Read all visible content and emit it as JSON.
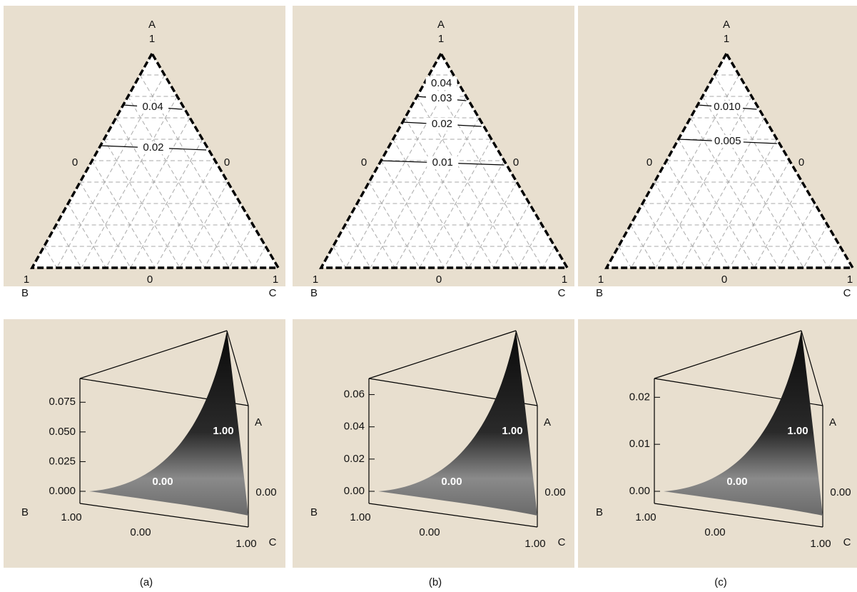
{
  "chart_data": [
    {
      "type": "ternary",
      "vertex_labels": [
        "A",
        "B",
        "C"
      ],
      "vertex_values": [
        1,
        1,
        1
      ],
      "edge_values": [
        0,
        0,
        0
      ],
      "contours": [
        {
          "value": 0.04,
          "a": 0.76
        },
        {
          "value": 0.02,
          "a": 0.57
        }
      ]
    },
    {
      "type": "ternary",
      "vertex_labels": [
        "A",
        "B",
        "C"
      ],
      "vertex_values": [
        1,
        1,
        1
      ],
      "edge_values": [
        0,
        0,
        0
      ],
      "contours": [
        {
          "value": 0.04,
          "a": 0.87
        },
        {
          "value": 0.03,
          "a": 0.8
        },
        {
          "value": 0.02,
          "a": 0.68
        },
        {
          "value": 0.01,
          "a": 0.5
        }
      ]
    },
    {
      "type": "ternary",
      "vertex_labels": [
        "A",
        "B",
        "C"
      ],
      "vertex_values": [
        1,
        1,
        1
      ],
      "edge_values": [
        0,
        0,
        0
      ],
      "contours": [
        {
          "value": 0.01,
          "label": "0.010",
          "a": 0.76
        },
        {
          "value": 0.005,
          "a": 0.6
        }
      ]
    },
    {
      "type": "surface",
      "vertex_labels": [
        "A",
        "B",
        "C"
      ],
      "caption": "(a)",
      "zlim": [
        0,
        0.095
      ],
      "zticks": [
        {
          "value": 0,
          "label": "0.000"
        },
        {
          "value": 0.025,
          "label": "0.025"
        },
        {
          "value": 0.05,
          "label": "0.050"
        },
        {
          "value": 0.075,
          "label": "0.075"
        }
      ],
      "edge_ticks": [
        {
          "value": 1,
          "label": "1.00"
        },
        {
          "value": 0,
          "label": "0.00"
        },
        {
          "value": 1,
          "label": "1.00"
        },
        {
          "value": 0,
          "label": "0.00"
        }
      ],
      "annotations": [
        {
          "value": 1,
          "label": "1.00"
        },
        {
          "value": 0,
          "label": "0.00"
        }
      ]
    },
    {
      "type": "surface",
      "vertex_labels": [
        "A",
        "B",
        "C"
      ],
      "caption": "(b)",
      "zlim": [
        0,
        0.07
      ],
      "zticks": [
        {
          "value": 0,
          "label": "0.00"
        },
        {
          "value": 0.02,
          "label": "0.02"
        },
        {
          "value": 0.04,
          "label": "0.04"
        },
        {
          "value": 0.06,
          "label": "0.06"
        }
      ],
      "edge_ticks": [
        {
          "value": 1,
          "label": "1.00"
        },
        {
          "value": 0,
          "label": "0.00"
        },
        {
          "value": 1,
          "label": "1.00"
        },
        {
          "value": 0,
          "label": "0.00"
        }
      ],
      "annotations": [
        {
          "value": 1,
          "label": "1.00"
        },
        {
          "value": 0,
          "label": "0.00"
        }
      ]
    },
    {
      "type": "surface",
      "vertex_labels": [
        "A",
        "B",
        "C"
      ],
      "caption": "(c)",
      "zlim": [
        0,
        0.024
      ],
      "zticks": [
        {
          "value": 0,
          "label": "0.00"
        },
        {
          "value": 0.01,
          "label": "0.01"
        },
        {
          "value": 0.02,
          "label": "0.02"
        }
      ],
      "edge_ticks": [
        {
          "value": 1,
          "label": "1.00"
        },
        {
          "value": 0,
          "label": "0.00"
        },
        {
          "value": 1,
          "label": "1.00"
        },
        {
          "value": 0,
          "label": "0.00"
        }
      ],
      "annotations": [
        {
          "value": 1,
          "label": "1.00"
        },
        {
          "value": 0,
          "label": "0.00"
        }
      ]
    }
  ]
}
